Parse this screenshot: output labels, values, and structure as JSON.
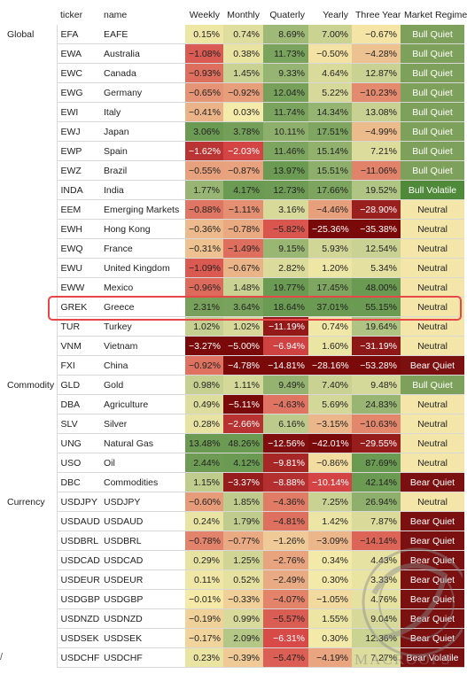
{
  "headers": {
    "group": "",
    "ticker": "ticker",
    "name": "name",
    "weekly": "Weekly",
    "monthly": "Monthly",
    "quarterly": "Quaterly",
    "yearly": "Yearly",
    "three_year": "Three Year",
    "regime": "Market Regime"
  },
  "groups": [
    {
      "label": "Global",
      "rows": [
        {
          "ticker": "EFA",
          "name": "EAFE",
          "weekly": "0.15%",
          "monthly": "0.74%",
          "quarterly": "8.69%",
          "yearly": "7.00%",
          "three_year": "-0.67%",
          "regime": "Bull Quiet"
        },
        {
          "ticker": "EWA",
          "name": "Australia",
          "weekly": "-1.08%",
          "monthly": "0.38%",
          "quarterly": "11.73%",
          "yearly": "-0.50%",
          "three_year": "-4.28%",
          "regime": "Bull Quiet"
        },
        {
          "ticker": "EWC",
          "name": "Canada",
          "weekly": "-0.93%",
          "monthly": "1.45%",
          "quarterly": "9.33%",
          "yearly": "4.64%",
          "three_year": "12.87%",
          "regime": "Bull Quiet"
        },
        {
          "ticker": "EWG",
          "name": "Germany",
          "weekly": "-0.65%",
          "monthly": "-0.92%",
          "quarterly": "12.04%",
          "yearly": "5.22%",
          "three_year": "-10.23%",
          "regime": "Bull Quiet"
        },
        {
          "ticker": "EWI",
          "name": "Italy",
          "weekly": "-0.41%",
          "monthly": "0.03%",
          "quarterly": "11.74%",
          "yearly": "14.34%",
          "three_year": "13.08%",
          "regime": "Bull Quiet"
        },
        {
          "ticker": "EWJ",
          "name": "Japan",
          "weekly": "3.06%",
          "monthly": "3.78%",
          "quarterly": "10.11%",
          "yearly": "17.51%",
          "three_year": "-4.99%",
          "regime": "Bull Quiet"
        },
        {
          "ticker": "EWP",
          "name": "Spain",
          "weekly": "-1.62%",
          "monthly": "-2.03%",
          "quarterly": "11.46%",
          "yearly": "15.14%",
          "three_year": "7.21%",
          "regime": "Bull Quiet"
        },
        {
          "ticker": "EWZ",
          "name": "Brazil",
          "weekly": "-0.55%",
          "monthly": "-0.87%",
          "quarterly": "13.97%",
          "yearly": "15.51%",
          "three_year": "-11.06%",
          "regime": "Bull Quiet"
        },
        {
          "ticker": "INDA",
          "name": "India",
          "weekly": "1.77%",
          "monthly": "4.17%",
          "quarterly": "12.73%",
          "yearly": "17.66%",
          "three_year": "19.52%",
          "regime": "Bull Volatile"
        },
        {
          "ticker": "EEM",
          "name": "Emerging Markets",
          "weekly": "-0.88%",
          "monthly": "-1.11%",
          "quarterly": "3.16%",
          "yearly": "-4.46%",
          "three_year": "-28.90%",
          "regime": "Neutral"
        },
        {
          "ticker": "EWH",
          "name": "Hong Kong",
          "weekly": "-0.36%",
          "monthly": "-0.78%",
          "quarterly": "-5.82%",
          "yearly": "-25.36%",
          "three_year": "-35.38%",
          "regime": "Neutral"
        },
        {
          "ticker": "EWQ",
          "name": "France",
          "weekly": "-0.31%",
          "monthly": "-1.49%",
          "quarterly": "9.15%",
          "yearly": "5.93%",
          "three_year": "12.54%",
          "regime": "Neutral"
        },
        {
          "ticker": "EWU",
          "name": "United Kingdom",
          "weekly": "-1.09%",
          "monthly": "-0.67%",
          "quarterly": "2.82%",
          "yearly": "1.20%",
          "three_year": "5.34%",
          "regime": "Neutral"
        },
        {
          "ticker": "EWW",
          "name": "Mexico",
          "weekly": "-0.96%",
          "monthly": "1.48%",
          "quarterly": "19.77%",
          "yearly": "17.45%",
          "three_year": "48.00%",
          "regime": "Neutral"
        },
        {
          "ticker": "GREK",
          "name": "Greece",
          "weekly": "2.31%",
          "monthly": "3.64%",
          "quarterly": "18.64%",
          "yearly": "37.01%",
          "three_year": "55.15%",
          "regime": "Neutral"
        },
        {
          "ticker": "TUR",
          "name": "Turkey",
          "weekly": "1.02%",
          "monthly": "1.02%",
          "quarterly": "-11.19%",
          "yearly": "0.74%",
          "three_year": "19.64%",
          "regime": "Neutral"
        },
        {
          "ticker": "VNM",
          "name": "Vietnam",
          "weekly": "-3.27%",
          "monthly": "-5.00%",
          "quarterly": "-6.94%",
          "yearly": "1.60%",
          "three_year": "-31.19%",
          "regime": "Neutral"
        },
        {
          "ticker": "FXI",
          "name": "China",
          "weekly": "-0.92%",
          "monthly": "-4.78%",
          "quarterly": "-14.81%",
          "yearly": "-28.16%",
          "three_year": "-53.28%",
          "regime": "Bear Quiet"
        }
      ]
    },
    {
      "label": "Commodity",
      "rows": [
        {
          "ticker": "GLD",
          "name": "Gold",
          "weekly": "0.98%",
          "monthly": "1.11%",
          "quarterly": "9.49%",
          "yearly": "7.40%",
          "three_year": "9.48%",
          "regime": "Bull Quiet"
        },
        {
          "ticker": "DBA",
          "name": "Agriculture",
          "weekly": "0.49%",
          "monthly": "-5.11%",
          "quarterly": "-4.63%",
          "yearly": "5.69%",
          "three_year": "24.83%",
          "regime": "Neutral"
        },
        {
          "ticker": "SLV",
          "name": "Silver",
          "weekly": "0.28%",
          "monthly": "-2.66%",
          "quarterly": "6.16%",
          "yearly": "-3.15%",
          "three_year": "-10.63%",
          "regime": "Neutral"
        },
        {
          "ticker": "UNG",
          "name": "Natural Gas",
          "weekly": "13.48%",
          "monthly": "48.26%",
          "quarterly": "-12.56%",
          "yearly": "-42.01%",
          "three_year": "-29.55%",
          "regime": "Neutral"
        },
        {
          "ticker": "USO",
          "name": "Oil",
          "weekly": "2.44%",
          "monthly": "4.12%",
          "quarterly": "-9.81%",
          "yearly": "-0.86%",
          "three_year": "87.69%",
          "regime": "Neutral"
        },
        {
          "ticker": "DBC",
          "name": "Commodities",
          "weekly": "1.15%",
          "monthly": "-3.37%",
          "quarterly": "-8.88%",
          "yearly": "-10.14%",
          "three_year": "42.14%",
          "regime": "Bear Quiet"
        }
      ]
    },
    {
      "label": "Currency",
      "rows": [
        {
          "ticker": "USDJPY",
          "name": "USDJPY",
          "weekly": "-0.60%",
          "monthly": "1.85%",
          "quarterly": "-4.36%",
          "yearly": "7.25%",
          "three_year": "26.94%",
          "regime": "Neutral"
        },
        {
          "ticker": "USDAUD",
          "name": "USDAUD",
          "weekly": "0.24%",
          "monthly": "1.79%",
          "quarterly": "-4.81%",
          "yearly": "1.42%",
          "three_year": "7.87%",
          "regime": "Bear Quiet"
        },
        {
          "ticker": "USDBRL",
          "name": "USDBRL",
          "weekly": "-0.78%",
          "monthly": "-0.77%",
          "quarterly": "-1.26%",
          "yearly": "-3.09%",
          "three_year": "-14.14%",
          "regime": "Bear Quiet"
        },
        {
          "ticker": "USDCAD",
          "name": "USDCAD",
          "weekly": "0.29%",
          "monthly": "1.25%",
          "quarterly": "-2.76%",
          "yearly": "0.34%",
          "three_year": "4.43%",
          "regime": "Bear Quiet"
        },
        {
          "ticker": "USDEUR",
          "name": "USDEUR",
          "weekly": "0.11%",
          "monthly": "0.52%",
          "quarterly": "-2.49%",
          "yearly": "0.30%",
          "three_year": "3.33%",
          "regime": "Bear Quiet"
        },
        {
          "ticker": "USDGBP",
          "name": "USDGBP",
          "weekly": "-0.01%",
          "monthly": "-0.33%",
          "quarterly": "-4.07%",
          "yearly": "-1.05%",
          "three_year": "4.76%",
          "regime": "Bear Quiet"
        },
        {
          "ticker": "USDNZD",
          "name": "USDNZD",
          "weekly": "-0.19%",
          "monthly": "0.99%",
          "quarterly": "-5.57%",
          "yearly": "1.55%",
          "three_year": "9.04%",
          "regime": "Bear Quiet"
        },
        {
          "ticker": "USDSEK",
          "name": "USDSEK",
          "weekly": "-0.17%",
          "monthly": "2.09%",
          "quarterly": "-6.31%",
          "yearly": "0.30%",
          "three_year": "12.36%",
          "regime": "Bear Quiet"
        },
        {
          "ticker": "USDCHF",
          "name": "USDCHF",
          "weekly": "0.23%",
          "monthly": "-0.39%",
          "quarterly": "-5.47%",
          "yearly": "-4.19%",
          "three_year": "7.27%",
          "regime": "Bear Volatile"
        }
      ]
    }
  ],
  "highlighted_ticker": "GREK",
  "regime_colors": {
    "Bull Quiet": "#7da05a",
    "Bull Volatile": "#4f8a3a",
    "Neutral": "#f3e6a8",
    "Bear Quiet": "#7a1010",
    "Bear Volatile": "#7a1010"
  },
  "scale_colors": {
    "neg_strong": "#7a0a0a",
    "neg": "#d64545",
    "neutral": "#f5eaa9",
    "pos": "#b9c98a",
    "pos_strong": "#6b9a52"
  },
  "highlight_color": "#e8474a",
  "watermark": {
    "text": "MACROOPS"
  },
  "edge_mark": "/"
}
